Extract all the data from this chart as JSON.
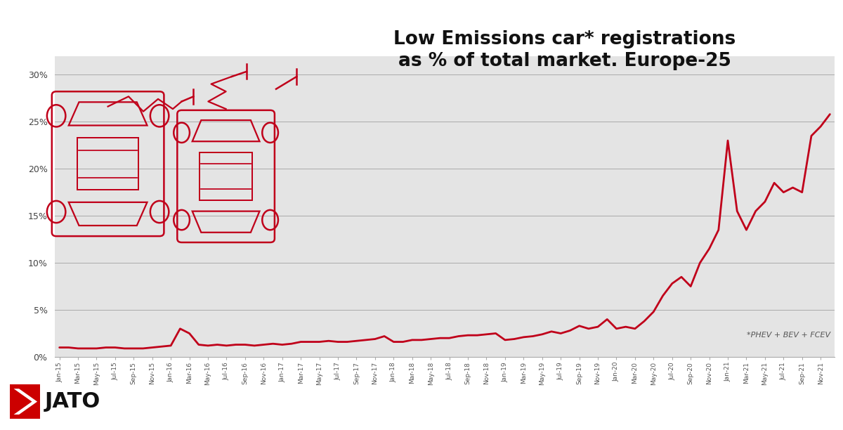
{
  "title": "Low Emissions car* registrations\nas % of total market. Europe-25",
  "footnote": "*PHEV + BEV + FCEV",
  "line_color": "#c0001a",
  "bg_color": "#e8e8e8",
  "chart_bg_color": "#e8e8e8",
  "bottom_bg_color": "#ffffff",
  "grid_color": "#aaaaaa",
  "title_color": "#111111",
  "ylim": [
    0,
    0.32
  ],
  "yticks": [
    0.0,
    0.05,
    0.1,
    0.15,
    0.2,
    0.25,
    0.3
  ],
  "ytick_labels": [
    "0%",
    "5%",
    "10%",
    "15%",
    "20%",
    "25%",
    "30%"
  ],
  "line_width": 2.0,
  "values": [
    0.01,
    0.01,
    0.009,
    0.009,
    0.009,
    0.01,
    0.01,
    0.009,
    0.009,
    0.009,
    0.01,
    0.011,
    0.012,
    0.03,
    0.025,
    0.013,
    0.012,
    0.013,
    0.012,
    0.013,
    0.013,
    0.012,
    0.013,
    0.014,
    0.013,
    0.014,
    0.016,
    0.016,
    0.016,
    0.017,
    0.016,
    0.016,
    0.017,
    0.018,
    0.019,
    0.022,
    0.016,
    0.016,
    0.018,
    0.018,
    0.019,
    0.02,
    0.02,
    0.022,
    0.023,
    0.023,
    0.024,
    0.025,
    0.018,
    0.019,
    0.021,
    0.022,
    0.024,
    0.027,
    0.025,
    0.028,
    0.033,
    0.03,
    0.032,
    0.04,
    0.03,
    0.032,
    0.03,
    0.038,
    0.048,
    0.065,
    0.078,
    0.085,
    0.075,
    0.1,
    0.115,
    0.135,
    0.23,
    0.155,
    0.135,
    0.155,
    0.165,
    0.185,
    0.175,
    0.18,
    0.175,
    0.235,
    0.245,
    0.258
  ],
  "jato_red": "#cc0000",
  "jato_text_color": "#111111"
}
